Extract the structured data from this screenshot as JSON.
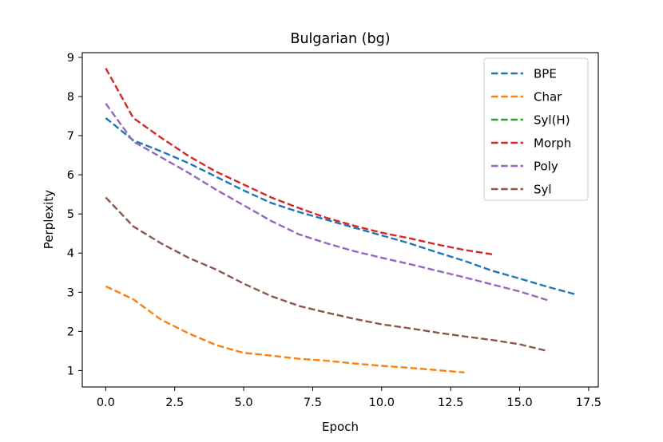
{
  "chart_data": {
    "type": "line",
    "title": "Bulgarian (bg)",
    "xlabel": "Epoch",
    "ylabel": "Perplexity",
    "xlim": [
      -0.85,
      17.85
    ],
    "ylim": [
      0.58,
      9.12
    ],
    "xticks": [
      0.0,
      2.5,
      5.0,
      7.5,
      10.0,
      12.5,
      15.0,
      17.5
    ],
    "xtick_labels": [
      "0.0",
      "2.5",
      "5.0",
      "7.5",
      "10.0",
      "12.5",
      "15.0",
      "17.5"
    ],
    "yticks": [
      1,
      2,
      3,
      4,
      5,
      6,
      7,
      8,
      9
    ],
    "ytick_labels": [
      "1",
      "2",
      "3",
      "4",
      "5",
      "6",
      "7",
      "8",
      "9"
    ],
    "grid": false,
    "legend_position": "top-right",
    "line_style": "dashed",
    "series": [
      {
        "name": "BPE",
        "color": "#1f77b4",
        "x": [
          0,
          1,
          2,
          3,
          4,
          5,
          6,
          7,
          8,
          9,
          10,
          11,
          12,
          13,
          14,
          15,
          16,
          17
        ],
        "y": [
          7.45,
          6.88,
          6.6,
          6.3,
          5.95,
          5.6,
          5.28,
          5.05,
          4.85,
          4.65,
          4.45,
          4.25,
          4.02,
          3.8,
          3.55,
          3.35,
          3.14,
          2.95
        ]
      },
      {
        "name": "Char",
        "color": "#ff7f0e",
        "x": [
          0,
          1,
          2,
          3,
          4,
          5,
          6,
          7,
          8,
          9,
          10,
          11,
          12,
          13
        ],
        "y": [
          3.15,
          2.82,
          2.3,
          1.95,
          1.65,
          1.45,
          1.38,
          1.3,
          1.25,
          1.18,
          1.12,
          1.07,
          1.01,
          0.95
        ]
      },
      {
        "name": "Syl(H)",
        "color": "#2ca02c",
        "x": [],
        "y": []
      },
      {
        "name": "Morph",
        "color": "#d62728",
        "x": [
          0,
          1,
          2,
          3,
          4,
          5,
          6,
          7,
          8,
          9,
          10,
          11,
          12,
          13,
          14
        ],
        "y": [
          8.72,
          7.45,
          6.95,
          6.48,
          6.08,
          5.75,
          5.42,
          5.15,
          4.9,
          4.7,
          4.52,
          4.38,
          4.22,
          4.08,
          3.97
        ]
      },
      {
        "name": "Poly",
        "color": "#9467bd",
        "x": [
          0,
          1,
          2,
          3,
          4,
          5,
          6,
          7,
          8,
          9,
          10,
          11,
          12,
          13,
          14,
          15,
          16
        ],
        "y": [
          7.82,
          6.85,
          6.45,
          6.05,
          5.62,
          5.22,
          4.82,
          4.48,
          4.25,
          4.05,
          3.88,
          3.72,
          3.55,
          3.38,
          3.2,
          3.02,
          2.8
        ]
      },
      {
        "name": "Syl",
        "color": "#8c564b",
        "x": [
          0,
          1,
          2,
          3,
          4,
          5,
          6,
          7,
          8,
          9,
          10,
          11,
          12,
          13,
          14,
          15,
          16
        ],
        "y": [
          5.42,
          4.68,
          4.25,
          3.88,
          3.58,
          3.22,
          2.9,
          2.65,
          2.48,
          2.32,
          2.18,
          2.08,
          1.97,
          1.87,
          1.78,
          1.67,
          1.5
        ]
      }
    ]
  }
}
